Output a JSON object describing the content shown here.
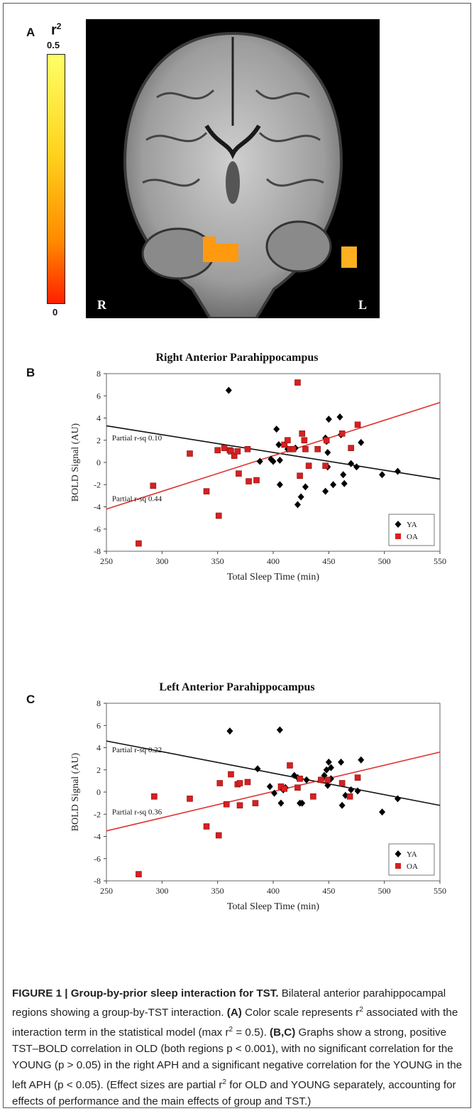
{
  "panel_a": {
    "letter": "A",
    "colorbar": {
      "symbol": "r",
      "exponent": "2",
      "max_label": "0.5",
      "min_label": "0",
      "colors": [
        "#ffff66",
        "#ffd21e",
        "#ff8a00",
        "#ff2000"
      ]
    },
    "orientation_left": "R",
    "orientation_right": "L"
  },
  "chart_data": [
    {
      "letter": "B",
      "type": "scatter",
      "title": "Right Anterior Parahippocampus",
      "xlabel": "Total Sleep Time (min)",
      "ylabel": "BOLD Signal (AU)",
      "xlim": [
        250,
        550
      ],
      "ylim": [
        -8,
        8
      ],
      "xticks": [
        250,
        300,
        350,
        400,
        450,
        500,
        550
      ],
      "yticks": [
        -8,
        -6,
        -4,
        -2,
        0,
        2,
        4,
        6,
        8
      ],
      "grid": false,
      "legend_position": "bottom-right",
      "annotations": [
        {
          "text": "Partial r-sq 0.10",
          "x": 255,
          "y": 2.0
        },
        {
          "text": "Partial r-sq 0.44",
          "x": 255,
          "y": -3.5
        }
      ],
      "series": [
        {
          "name": "YA",
          "marker": "diamond",
          "color": "#000000",
          "fit": {
            "x": [
              250,
              550
            ],
            "y": [
              3.3,
              -1.5
            ]
          },
          "points": [
            [
              360,
              6.5
            ],
            [
              403,
              3.0
            ],
            [
              405,
              1.6
            ],
            [
              398,
              0.3
            ],
            [
              400,
              0.1
            ],
            [
              406,
              0.2
            ],
            [
              388,
              0.1
            ],
            [
              406,
              -2.0
            ],
            [
              413,
              1.2
            ],
            [
              420,
              1.3
            ],
            [
              422,
              -3.8
            ],
            [
              425,
              -3.1
            ],
            [
              429,
              -2.2
            ],
            [
              447,
              2.2
            ],
            [
              448,
              1.9
            ],
            [
              450,
              3.9
            ],
            [
              449,
              0.9
            ],
            [
              449,
              -0.4
            ],
            [
              447,
              -2.6
            ],
            [
              454,
              -2.0
            ],
            [
              460,
              4.1
            ],
            [
              461,
              2.5
            ],
            [
              463,
              -1.1
            ],
            [
              464,
              -1.9
            ],
            [
              470,
              -0.1
            ],
            [
              475,
              -0.4
            ],
            [
              479,
              1.8
            ],
            [
              498,
              -1.1
            ],
            [
              512,
              -0.8
            ]
          ]
        },
        {
          "name": "OA",
          "marker": "square",
          "color": "#d62020",
          "fit": {
            "x": [
              250,
              550
            ],
            "y": [
              -4.2,
              5.4
            ]
          },
          "points": [
            [
              279,
              -7.3
            ],
            [
              292,
              -2.1
            ],
            [
              325,
              0.8
            ],
            [
              340,
              -2.6
            ],
            [
              350,
              1.1
            ],
            [
              351,
              -4.8
            ],
            [
              356,
              1.3
            ],
            [
              361,
              1.1
            ],
            [
              362,
              1.0
            ],
            [
              365,
              0.6
            ],
            [
              368,
              1.0
            ],
            [
              369,
              -1.0
            ],
            [
              377,
              1.2
            ],
            [
              378,
              -1.7
            ],
            [
              385,
              -1.6
            ],
            [
              410,
              1.6
            ],
            [
              413,
              2.0
            ],
            [
              415,
              1.2
            ],
            [
              418,
              1.2
            ],
            [
              422,
              7.2
            ],
            [
              424,
              -1.2
            ],
            [
              426,
              2.6
            ],
            [
              428,
              2.0
            ],
            [
              429,
              1.2
            ],
            [
              432,
              -0.3
            ],
            [
              440,
              1.2
            ],
            [
              447,
              -0.3
            ],
            [
              462,
              2.6
            ],
            [
              470,
              1.3
            ],
            [
              476,
              3.4
            ],
            [
              448,
              2.0
            ]
          ]
        }
      ]
    },
    {
      "letter": "C",
      "type": "scatter",
      "title": "Left Anterior Parahippocampus",
      "xlabel": "Total Sleep Time (min)",
      "ylabel": "BOLD Signal (AU)",
      "xlim": [
        250,
        550
      ],
      "ylim": [
        -8,
        8
      ],
      "xticks": [
        250,
        300,
        350,
        400,
        450,
        500,
        550
      ],
      "yticks": [
        -8,
        -6,
        -4,
        -2,
        0,
        2,
        4,
        6,
        8
      ],
      "grid": false,
      "legend_position": "bottom-right",
      "annotations": [
        {
          "text": "Partial r-sq 0.22",
          "x": 255,
          "y": 3.6
        },
        {
          "text": "Partial r-sq 0.36",
          "x": 255,
          "y": -2.0
        }
      ],
      "series": [
        {
          "name": "YA",
          "marker": "diamond",
          "color": "#000000",
          "fit": {
            "x": [
              250,
              550
            ],
            "y": [
              4.6,
              -1.2
            ]
          },
          "points": [
            [
              361,
              5.5
            ],
            [
              406,
              5.6
            ],
            [
              386,
              2.1
            ],
            [
              397,
              0.5
            ],
            [
              401,
              -0.1
            ],
            [
              407,
              -1.0
            ],
            [
              409,
              0.2
            ],
            [
              411,
              0.4
            ],
            [
              419,
              1.5
            ],
            [
              422,
              1.3
            ],
            [
              424,
              -1.0
            ],
            [
              426,
              -1.0
            ],
            [
              430,
              1.1
            ],
            [
              443,
              1.1
            ],
            [
              446,
              1.5
            ],
            [
              448,
              2.0
            ],
            [
              450,
              2.7
            ],
            [
              449,
              0.6
            ],
            [
              452,
              1.2
            ],
            [
              452,
              2.2
            ],
            [
              461,
              2.7
            ],
            [
              462,
              -1.2
            ],
            [
              465,
              -0.3
            ],
            [
              470,
              0.2
            ],
            [
              476,
              0.1
            ],
            [
              479,
              2.9
            ],
            [
              498,
              -1.8
            ],
            [
              512,
              -0.6
            ]
          ]
        },
        {
          "name": "OA",
          "marker": "square",
          "color": "#d62020",
          "fit": {
            "x": [
              250,
              550
            ],
            "y": [
              -3.5,
              3.6
            ]
          },
          "points": [
            [
              279,
              -7.4
            ],
            [
              293,
              -0.4
            ],
            [
              325,
              -0.6
            ],
            [
              340,
              -3.1
            ],
            [
              351,
              -3.9
            ],
            [
              352,
              0.8
            ],
            [
              358,
              -1.1
            ],
            [
              362,
              1.6
            ],
            [
              368,
              0.7
            ],
            [
              370,
              0.8
            ],
            [
              370,
              -1.2
            ],
            [
              377,
              0.9
            ],
            [
              384,
              -1.0
            ],
            [
              407,
              0.5
            ],
            [
              410,
              0.3
            ],
            [
              415,
              2.4
            ],
            [
              422,
              0.4
            ],
            [
              424,
              1.2
            ],
            [
              436,
              -0.4
            ],
            [
              443,
              1.1
            ],
            [
              449,
              1.1
            ],
            [
              462,
              0.8
            ],
            [
              469,
              -0.4
            ],
            [
              476,
              1.3
            ]
          ]
        }
      ]
    }
  ],
  "caption": {
    "figure_label": "FIGURE 1 | Group-by-prior sleep interaction for TST.",
    "line1": " Bilateral anterior parahippocampal regions showing a group-by-TST interaction. ",
    "a_label": "(A)",
    "a_text_1": " Color scale represents r",
    "a_text_2": "2",
    "a_text_3": " associated with the interaction term in the statistical model (max r",
    "a_text_4": "2",
    "a_text_5": " = 0.5). ",
    "bc_label": "(B,C)",
    "bc_text_1": " Graphs show a strong, positive TST–BOLD correlation in OLD (both regions p < 0.001), with no significant correlation for the YOUNG (p > 0.05) in the right APH and a significant negative correlation for the YOUNG in the left APH (p < 0.05). (Effect sizes are partial r",
    "bc_text_2": "2",
    "bc_text_3": " for OLD and YOUNG separately, accounting for effects of performance and the main effects of group and TST.)"
  }
}
